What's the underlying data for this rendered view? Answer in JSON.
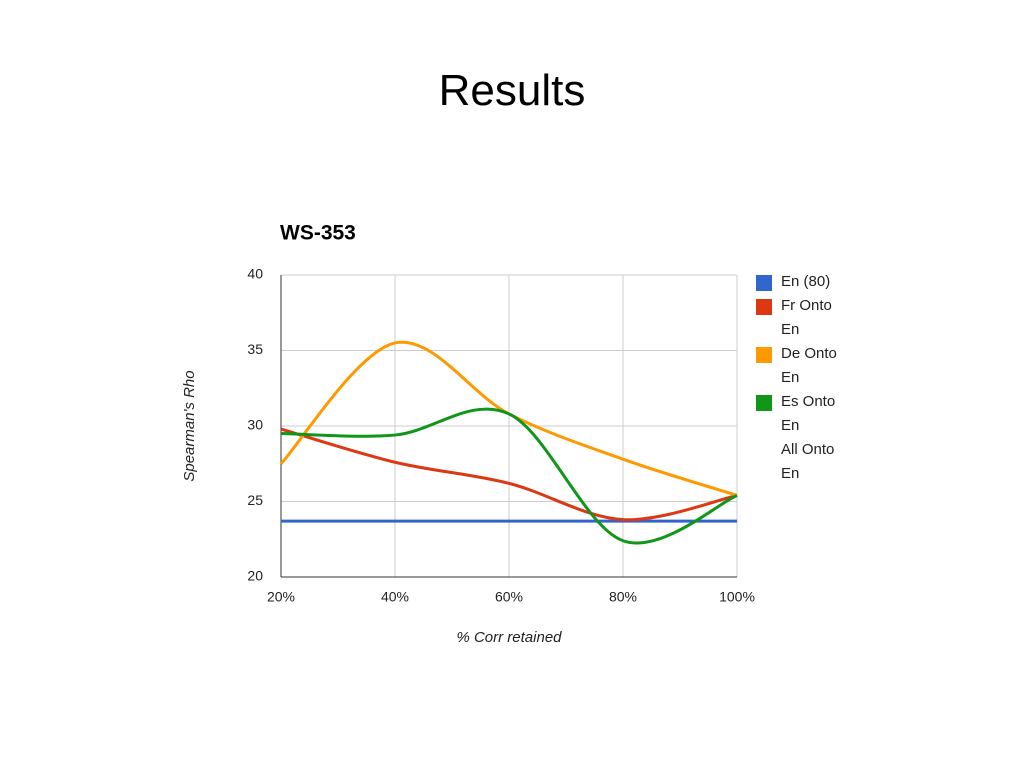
{
  "slide_title": "Results",
  "chart_data": {
    "type": "line",
    "title": "WS-353",
    "x_label": "% Corr retained",
    "y_label": "Spearman's Rho",
    "x": [
      20,
      40,
      60,
      80,
      100
    ],
    "xlim": [
      20,
      100
    ],
    "xticks": [
      {
        "value": 20,
        "label": "20%"
      },
      {
        "value": 40,
        "label": "40%"
      },
      {
        "value": 60,
        "label": "60%"
      },
      {
        "value": 80,
        "label": "80%"
      },
      {
        "value": 100,
        "label": "100%"
      }
    ],
    "ylim": [
      20,
      40
    ],
    "yticks": [
      20,
      25,
      30,
      35,
      40
    ],
    "grid": true,
    "legend": "right",
    "smooth": true,
    "series": [
      {
        "name": "En (80)",
        "color": "#3366cc",
        "values": [
          23.7,
          23.7,
          23.7,
          23.7,
          23.7
        ]
      },
      {
        "name": "Fr Onto En",
        "color": "#dc3912",
        "values": [
          29.8,
          27.6,
          26.2,
          23.8,
          25.4
        ]
      },
      {
        "name": "De Onto En",
        "color": "#ff9900",
        "values": [
          27.5,
          35.5,
          30.8,
          27.8,
          25.4
        ]
      },
      {
        "name": "Es Onto En",
        "color": "#109618",
        "values": [
          29.5,
          29.4,
          30.8,
          22.4,
          25.4
        ]
      },
      {
        "name": "All Onto En",
        "values": [
          null,
          null,
          null,
          null,
          null
        ]
      }
    ]
  }
}
